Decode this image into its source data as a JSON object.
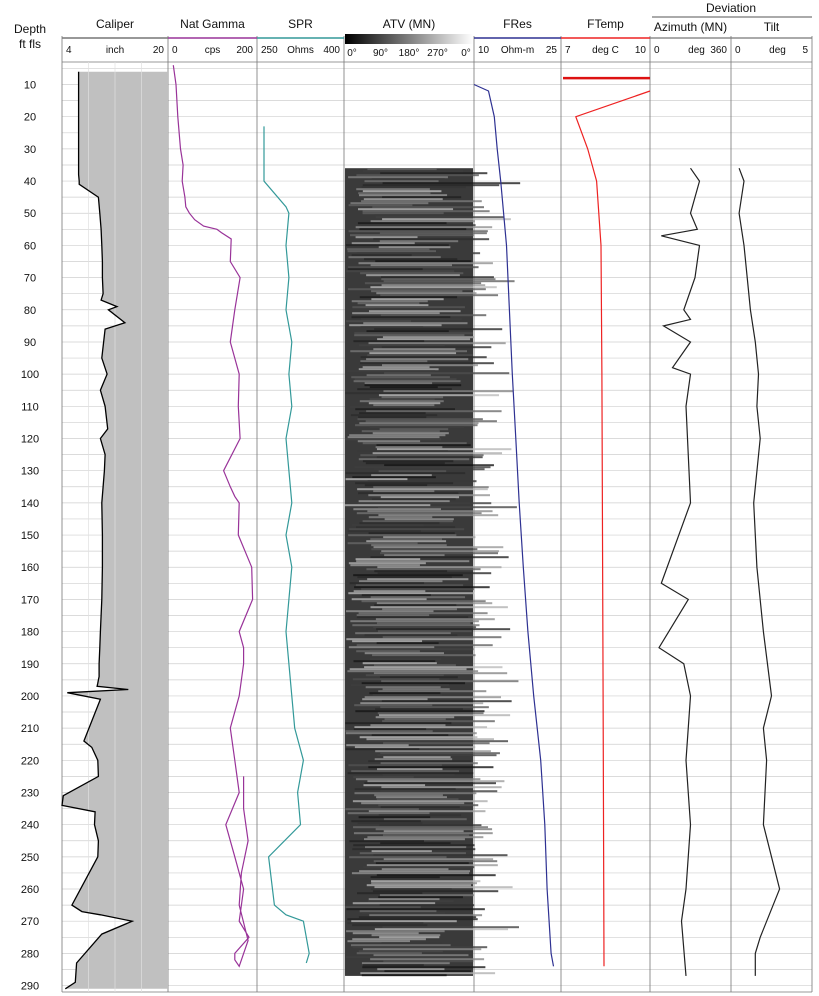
{
  "chart_data": [
    {
      "type": "line",
      "track": "depth",
      "header": [
        "Depth",
        "ft fls"
      ],
      "depth_range": [
        3,
        292
      ],
      "depth_ticks": [
        10,
        20,
        30,
        40,
        50,
        60,
        70,
        80,
        90,
        100,
        110,
        120,
        130,
        140,
        150,
        160,
        170,
        180,
        190,
        200,
        210,
        220,
        230,
        240,
        250,
        260,
        270,
        280,
        290
      ]
    },
    {
      "type": "area",
      "title": "Caliper",
      "unit": "inch",
      "scale": [
        "4",
        "20"
      ],
      "xlim": [
        4,
        20
      ],
      "color": "#000000",
      "fill": "#c0c0c0",
      "x": [
        6.5,
        6.5,
        6.5,
        6.5,
        6.5,
        6.6,
        6.6,
        9.5,
        9.7,
        9.9,
        10.0,
        10.1,
        10.1,
        10.2,
        9.9,
        12.3,
        11.0,
        13.5,
        10.5,
        10.0,
        10.8,
        9.8,
        10.5,
        10.9,
        9.8,
        10.5,
        10.4,
        10.2,
        10.0,
        10.1,
        10.1,
        10.0,
        9.8,
        9.7,
        9.6,
        9.6,
        9.6,
        9.5,
        9.4,
        9.3,
        14.0,
        4.8,
        9.8,
        7.3,
        8.5,
        9.4,
        9.5,
        4.2,
        4.0,
        9.0,
        8.9,
        9.5,
        9.4,
        5.5,
        7.0,
        9.8,
        14.6,
        10.0,
        6.2,
        6.0,
        4.5
      ],
      "y": [
        6,
        10,
        20,
        30,
        38,
        40,
        41,
        45,
        50,
        55,
        60,
        65,
        70,
        75,
        77,
        79,
        80,
        84,
        86,
        95,
        100,
        105,
        110,
        117,
        120,
        125,
        130,
        135,
        140,
        150,
        160,
        170,
        180,
        185,
        190,
        192,
        194,
        195,
        196,
        197,
        198,
        199,
        201,
        214,
        216,
        220,
        225,
        231,
        234,
        236,
        240,
        245,
        250,
        265,
        267,
        268,
        270,
        274,
        283,
        289,
        291
      ]
    },
    {
      "type": "line",
      "title": "Nat Gamma",
      "unit": "cps",
      "scale": [
        "0",
        "200"
      ],
      "xlim": [
        0,
        200
      ],
      "color": "#993399",
      "x": [
        12,
        18,
        22,
        28,
        34,
        32,
        38,
        40,
        48,
        60,
        80,
        110,
        120,
        142,
        140,
        162,
        150,
        140,
        160,
        158,
        162,
        125,
        140,
        150,
        160,
        158,
        188,
        190,
        160,
        170,
        170,
        160,
        140,
        150,
        160,
        130,
        150,
        170,
        160,
        182,
        150,
        150,
        160,
        180,
        160,
        165,
        180,
        170,
        170
      ],
      "y": [
        4,
        10,
        20,
        30,
        35,
        40,
        45,
        48,
        50,
        52,
        54,
        55,
        56,
        58,
        65,
        70,
        80,
        90,
        100,
        110,
        120,
        130,
        135,
        138,
        140,
        150,
        160,
        170,
        180,
        185,
        190,
        200,
        210,
        220,
        230,
        240,
        250,
        260,
        270,
        275,
        280,
        282,
        284,
        276,
        265,
        255,
        245,
        235,
        225
      ]
    },
    {
      "type": "line",
      "title": "SPR",
      "unit": "Ohms",
      "scale": [
        "250",
        "400"
      ],
      "xlim": [
        250,
        400
      ],
      "color": "#339999",
      "x": [
        262,
        262,
        262,
        262,
        300,
        305,
        300,
        305,
        300,
        310,
        305,
        310,
        300,
        305,
        310,
        300,
        310,
        305,
        300,
        305,
        310,
        315,
        330,
        320,
        325,
        270,
        280,
        300,
        330,
        340,
        335
      ],
      "y": [
        23,
        30,
        38,
        40,
        48,
        50,
        60,
        70,
        80,
        90,
        100,
        110,
        120,
        130,
        140,
        150,
        160,
        170,
        180,
        190,
        200,
        210,
        220,
        230,
        240,
        250,
        265,
        268,
        270,
        280,
        283
      ]
    },
    {
      "type": "heatmap",
      "title": "ATV (MN)",
      "scale": [
        "0°",
        "90°",
        "180°",
        "270°",
        "0°"
      ],
      "y_range": [
        36,
        287
      ],
      "colormap": [
        "#000000",
        "#ffffff"
      ]
    },
    {
      "type": "line",
      "title": "FRes",
      "unit": "Ohm-m",
      "scale": [
        "10",
        "25"
      ],
      "xlim": [
        10,
        25
      ],
      "color": "#2e3192",
      "x": [
        10.0,
        12.5,
        13.5,
        14.0,
        14.6,
        15.1,
        15.6,
        16.1,
        16.6,
        17.2,
        17.8,
        18.5,
        19.3,
        20.3,
        21.5,
        22.2,
        22.6,
        23.3,
        23.7
      ],
      "y": [
        10,
        12,
        20,
        30,
        40,
        50,
        60,
        80,
        100,
        120,
        140,
        160,
        180,
        200,
        220,
        240,
        260,
        280,
        284
      ]
    },
    {
      "type": "line",
      "title": "FTemp",
      "unit": "deg C",
      "scale": [
        "7",
        "10"
      ],
      "xlim": [
        7,
        10
      ],
      "color": "#ee2222",
      "x": [
        10.0,
        7.5,
        7.9,
        8.2,
        8.35,
        8.38,
        8.4,
        8.42,
        8.45
      ],
      "y": [
        12,
        20,
        30,
        40,
        60,
        100,
        150,
        200,
        284
      ]
    },
    {
      "type": "line",
      "group": "Deviation",
      "title": "Azimuth (MN)",
      "unit": "deg",
      "scale": [
        "0",
        "360"
      ],
      "xlim": [
        0,
        360
      ],
      "color": "#222222",
      "x": [
        180,
        220,
        180,
        210,
        50,
        220,
        200,
        150,
        180,
        60,
        180,
        100,
        180,
        160,
        180,
        50,
        170,
        40,
        150,
        180,
        160,
        180,
        160,
        140,
        160
      ],
      "y": [
        36,
        40,
        50,
        55,
        57,
        60,
        70,
        80,
        83,
        85,
        90,
        98,
        100,
        110,
        140,
        165,
        170,
        185,
        190,
        200,
        220,
        240,
        260,
        270,
        287
      ]
    },
    {
      "type": "line",
      "group": "Deviation",
      "title": "Tilt",
      "unit": "deg",
      "scale": [
        "0",
        "5"
      ],
      "xlim": [
        0,
        5
      ],
      "color": "#222222",
      "x": [
        0.5,
        0.8,
        0.5,
        0.8,
        1.0,
        1.2,
        1.5,
        1.7,
        1.6,
        1.8,
        1.4,
        1.6,
        2.0,
        2.5,
        2.0,
        2.2,
        2.0,
        3.0,
        1.8,
        1.5,
        1.5
      ],
      "y": [
        36,
        40,
        50,
        60,
        70,
        80,
        90,
        100,
        110,
        120,
        140,
        160,
        180,
        200,
        210,
        220,
        240,
        260,
        275,
        280,
        287
      ]
    }
  ]
}
